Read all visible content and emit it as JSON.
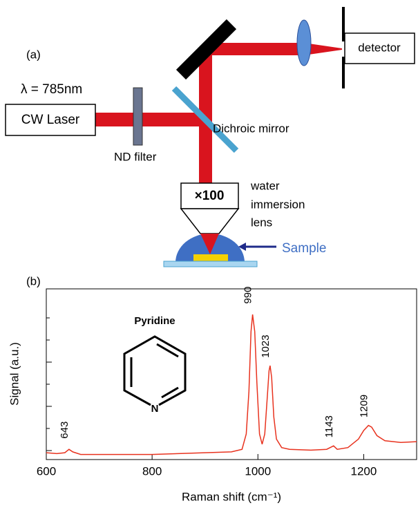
{
  "diagram": {
    "panel_label": "(a)",
    "wavelength": "λ = 785nm",
    "laser": "CW Laser",
    "nd_filter": "ND filter",
    "dichroic": "Dichroic mirror",
    "objective": "×100",
    "lens_label": [
      "water",
      "immersion",
      "lens"
    ],
    "sample": "Sample",
    "detector": "detector"
  },
  "chart_data": {
    "type": "line",
    "panel_label": "(b)",
    "xlabel": "Raman shift (cm⁻¹)",
    "ylabel": "Signal (a.u.)",
    "color": "#e8321e",
    "molecule": {
      "name": "Pyridine",
      "atom": "N"
    },
    "x": [
      600,
      620,
      635,
      643,
      650,
      665,
      700,
      750,
      800,
      850,
      900,
      950,
      970,
      978,
      983,
      987,
      990,
      994,
      998,
      1003,
      1008,
      1013,
      1018,
      1021,
      1023,
      1026,
      1030,
      1035,
      1045,
      1060,
      1100,
      1130,
      1143,
      1150,
      1170,
      1190,
      1200,
      1209,
      1215,
      1225,
      1240,
      1270,
      1300
    ],
    "values": [
      0.4,
      0.35,
      0.4,
      0.6,
      0.45,
      0.3,
      0.3,
      0.3,
      0.3,
      0.35,
      0.4,
      0.45,
      0.6,
      1.5,
      4,
      7.5,
      8.5,
      7.5,
      4.5,
      1.5,
      0.9,
      1.5,
      3.8,
      5.2,
      5.5,
      4.8,
      2.5,
      1.2,
      0.7,
      0.6,
      0.55,
      0.6,
      0.8,
      0.6,
      0.7,
      1.2,
      1.7,
      2.0,
      1.9,
      1.4,
      1.1,
      1.0,
      1.05
    ],
    "peaks": [
      643,
      990,
      1023,
      1143,
      1209
    ],
    "xlim": [
      600,
      1300
    ],
    "xticks": [
      600,
      800,
      1000,
      1200
    ],
    "ylim": [
      0,
      10
    ]
  }
}
